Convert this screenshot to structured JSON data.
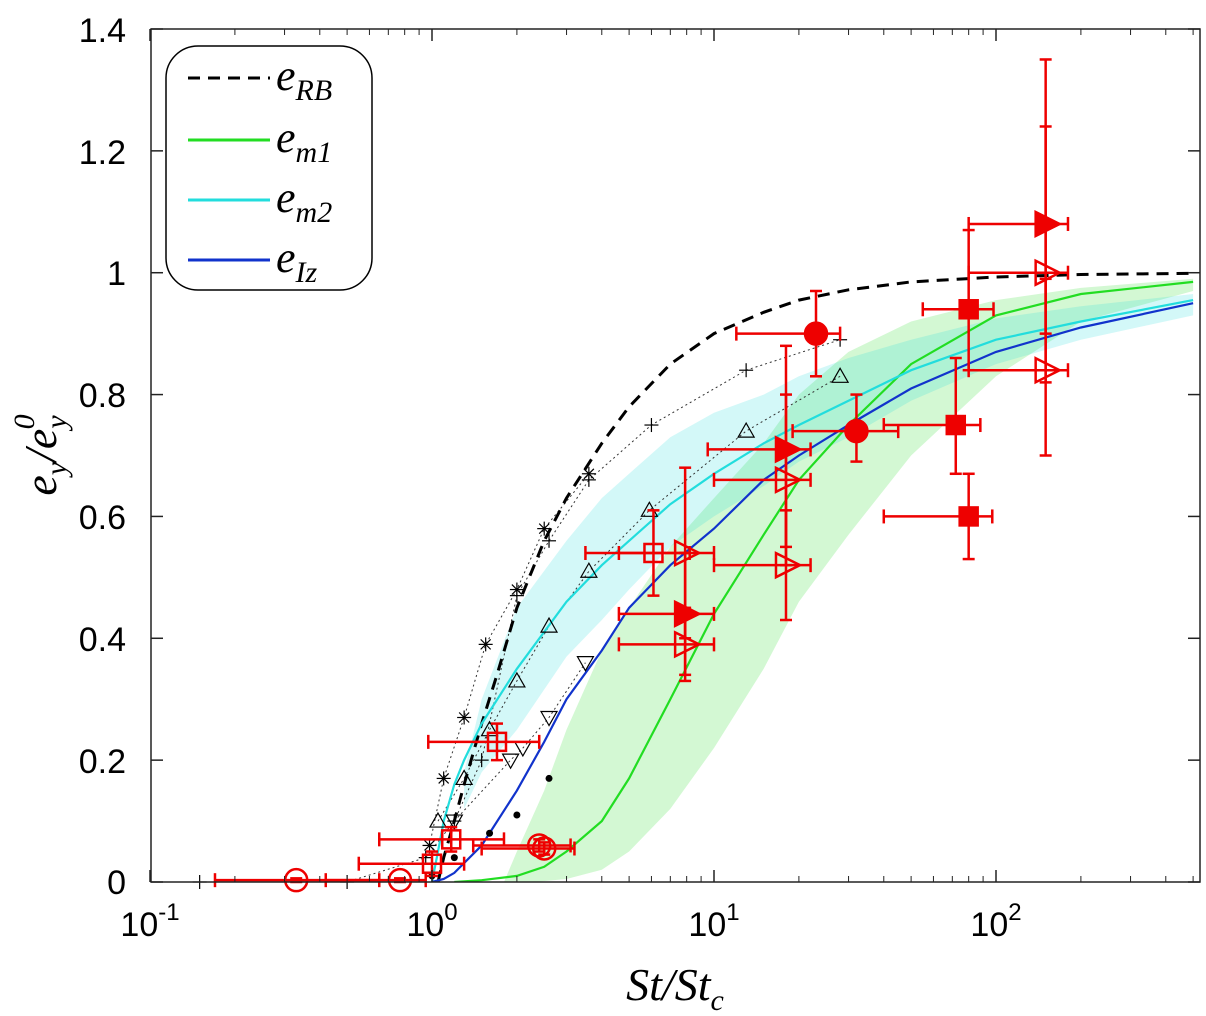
{
  "chart_data": {
    "type": "scatter",
    "xscale": "log",
    "xlim": [
      0.1,
      500
    ],
    "ylim": [
      0,
      1.4
    ],
    "xlabel": {
      "main": "St/St",
      "sub": "c"
    },
    "ylabel": {
      "a": "e",
      "a_sub": "y",
      "slash": "/",
      "b": "e",
      "b_sub": "y",
      "b_sup": "0"
    },
    "x_ticks": [
      {
        "value": 0.1,
        "base": "10",
        "exp": "-1"
      },
      {
        "value": 1,
        "base": "10",
        "exp": "0"
      },
      {
        "value": 10,
        "base": "10",
        "exp": "1"
      },
      {
        "value": 100,
        "base": "10",
        "exp": "2"
      }
    ],
    "y_ticks": [
      {
        "value": 0,
        "label": "0"
      },
      {
        "value": 0.2,
        "label": "0.2"
      },
      {
        "value": 0.4,
        "label": "0.4"
      },
      {
        "value": 0.6,
        "label": "0.6"
      },
      {
        "value": 0.8,
        "label": "0.8"
      },
      {
        "value": 1.0,
        "label": "1"
      },
      {
        "value": 1.2,
        "label": "1.2"
      },
      {
        "value": 1.4,
        "label": "1.4"
      }
    ],
    "legend": {
      "position": "top-left",
      "entries": [
        {
          "id": "eRB",
          "base": "e",
          "sub": "RB",
          "color": "#000000",
          "style": "dashed"
        },
        {
          "id": "em1",
          "base": "e",
          "sub": "m1",
          "color": "#22dd22",
          "style": "solid"
        },
        {
          "id": "em2",
          "base": "e",
          "sub": "m2",
          "color": "#22dddd",
          "style": "solid"
        },
        {
          "id": "eIz",
          "base": "e",
          "sub": "Iz",
          "color": "#1133cc",
          "style": "solid"
        }
      ]
    },
    "model_curves": [
      {
        "id": "eRB",
        "color": "#000000",
        "dash": true,
        "points": [
          [
            1.05,
            0.0
          ],
          [
            1.1,
            0.04
          ],
          [
            1.2,
            0.1
          ],
          [
            1.3,
            0.16
          ],
          [
            1.5,
            0.26
          ],
          [
            1.7,
            0.34
          ],
          [
            2,
            0.45
          ],
          [
            2.5,
            0.56
          ],
          [
            3,
            0.63
          ],
          [
            4,
            0.72
          ],
          [
            5,
            0.78
          ],
          [
            7,
            0.85
          ],
          [
            10,
            0.9
          ],
          [
            15,
            0.935
          ],
          [
            20,
            0.955
          ],
          [
            30,
            0.972
          ],
          [
            50,
            0.985
          ],
          [
            100,
            0.993
          ],
          [
            200,
            0.997
          ],
          [
            500,
            0.999
          ]
        ]
      },
      {
        "id": "em1",
        "color": "#22dd22",
        "dash": false,
        "points": [
          [
            1.2,
            0.0
          ],
          [
            1.5,
            0.003
          ],
          [
            2,
            0.01
          ],
          [
            2.5,
            0.025
          ],
          [
            3,
            0.05
          ],
          [
            4,
            0.1
          ],
          [
            5,
            0.17
          ],
          [
            7,
            0.3
          ],
          [
            10,
            0.44
          ],
          [
            15,
            0.57
          ],
          [
            20,
            0.66
          ],
          [
            30,
            0.75
          ],
          [
            50,
            0.85
          ],
          [
            100,
            0.93
          ],
          [
            200,
            0.965
          ],
          [
            500,
            0.985
          ]
        ]
      },
      {
        "id": "em2",
        "color": "#22dddd",
        "dash": false,
        "points": [
          [
            1.0,
            0.0
          ],
          [
            1.05,
            0.05
          ],
          [
            1.1,
            0.1
          ],
          [
            1.2,
            0.16
          ],
          [
            1.3,
            0.2
          ],
          [
            1.5,
            0.26
          ],
          [
            2,
            0.35
          ],
          [
            3,
            0.46
          ],
          [
            4,
            0.52
          ],
          [
            5,
            0.56
          ],
          [
            7,
            0.62
          ],
          [
            10,
            0.67
          ],
          [
            15,
            0.72
          ],
          [
            20,
            0.75
          ],
          [
            30,
            0.79
          ],
          [
            50,
            0.84
          ],
          [
            100,
            0.89
          ],
          [
            200,
            0.92
          ],
          [
            500,
            0.955
          ]
        ]
      },
      {
        "id": "eIz",
        "color": "#1133cc",
        "dash": false,
        "points": [
          [
            1.0,
            0.0
          ],
          [
            1.1,
            0.005
          ],
          [
            1.2,
            0.015
          ],
          [
            1.5,
            0.06
          ],
          [
            2,
            0.15
          ],
          [
            2.5,
            0.23
          ],
          [
            3,
            0.3
          ],
          [
            4,
            0.38
          ],
          [
            5,
            0.45
          ],
          [
            7,
            0.52
          ],
          [
            10,
            0.58
          ],
          [
            15,
            0.66
          ],
          [
            20,
            0.7
          ],
          [
            30,
            0.75
          ],
          [
            50,
            0.81
          ],
          [
            100,
            0.87
          ],
          [
            200,
            0.91
          ],
          [
            500,
            0.95
          ]
        ]
      }
    ],
    "bands": [
      {
        "id": "em1-band",
        "color": "#22dd22",
        "opacity": 0.2,
        "upper": [
          [
            1.8,
            0.0
          ],
          [
            2,
            0.05
          ],
          [
            2.5,
            0.15
          ],
          [
            3,
            0.25
          ],
          [
            4,
            0.38
          ],
          [
            5,
            0.45
          ],
          [
            7,
            0.55
          ],
          [
            10,
            0.63
          ],
          [
            15,
            0.72
          ],
          [
            20,
            0.8
          ],
          [
            30,
            0.87
          ],
          [
            50,
            0.92
          ],
          [
            100,
            0.955
          ],
          [
            200,
            0.975
          ],
          [
            500,
            0.99
          ]
        ],
        "lower": [
          [
            2.3,
            0.0
          ],
          [
            3,
            0.005
          ],
          [
            4,
            0.02
          ],
          [
            5,
            0.05
          ],
          [
            7,
            0.12
          ],
          [
            10,
            0.22
          ],
          [
            15,
            0.35
          ],
          [
            20,
            0.46
          ],
          [
            30,
            0.57
          ],
          [
            50,
            0.7
          ],
          [
            100,
            0.83
          ],
          [
            200,
            0.92
          ],
          [
            500,
            0.97
          ]
        ]
      },
      {
        "id": "em2-band",
        "color": "#22dddd",
        "opacity": 0.2,
        "upper": [
          [
            1.3,
            0.18
          ],
          [
            1.5,
            0.3
          ],
          [
            2,
            0.45
          ],
          [
            3,
            0.56
          ],
          [
            4,
            0.63
          ],
          [
            5,
            0.67
          ],
          [
            7,
            0.73
          ],
          [
            10,
            0.77
          ],
          [
            15,
            0.8
          ],
          [
            20,
            0.83
          ],
          [
            30,
            0.86
          ],
          [
            50,
            0.89
          ],
          [
            100,
            0.925
          ],
          [
            200,
            0.945
          ],
          [
            500,
            0.965
          ]
        ],
        "lower": [
          [
            1.3,
            0.12
          ],
          [
            1.5,
            0.18
          ],
          [
            2,
            0.25
          ],
          [
            3,
            0.37
          ],
          [
            4,
            0.43
          ],
          [
            5,
            0.48
          ],
          [
            7,
            0.55
          ],
          [
            10,
            0.6
          ],
          [
            15,
            0.65
          ],
          [
            20,
            0.69
          ],
          [
            30,
            0.73
          ],
          [
            50,
            0.79
          ],
          [
            100,
            0.85
          ],
          [
            200,
            0.89
          ],
          [
            500,
            0.93
          ]
        ]
      }
    ],
    "reference_series": [
      {
        "id": "ref-star",
        "marker": "star",
        "points": [
          [
            0.98,
            0.06
          ],
          [
            1.1,
            0.17
          ],
          [
            1.3,
            0.27
          ],
          [
            1.55,
            0.39
          ],
          [
            2,
            0.48
          ],
          [
            2.5,
            0.58
          ],
          [
            3.6,
            0.67
          ]
        ]
      },
      {
        "id": "ref-plus",
        "marker": "plus",
        "points": [
          [
            0.15,
            0.0
          ],
          [
            0.5,
            0.0
          ],
          [
            0.95,
            0.04
          ],
          [
            1.2,
            0.1
          ],
          [
            1.5,
            0.2
          ],
          [
            2,
            0.47
          ],
          [
            2.6,
            0.56
          ],
          [
            3.6,
            0.66
          ],
          [
            6,
            0.75
          ],
          [
            13,
            0.84
          ],
          [
            28,
            0.89
          ]
        ]
      },
      {
        "id": "ref-up",
        "marker": "triangle-up",
        "points": [
          [
            1.05,
            0.1
          ],
          [
            1.3,
            0.17
          ],
          [
            1.6,
            0.25
          ],
          [
            2,
            0.33
          ],
          [
            2.6,
            0.42
          ],
          [
            3.6,
            0.51
          ],
          [
            5.9,
            0.61
          ],
          [
            13,
            0.74
          ],
          [
            28,
            0.83
          ]
        ]
      },
      {
        "id": "ref-down",
        "marker": "triangle-down",
        "points": [
          [
            1.2,
            0.1
          ],
          [
            1.9,
            0.2
          ],
          [
            2.1,
            0.22
          ],
          [
            2.6,
            0.27
          ],
          [
            3.5,
            0.36
          ]
        ]
      },
      {
        "id": "ref-dot",
        "marker": "dot",
        "points": [
          [
            1.0,
            0.01
          ],
          [
            1.2,
            0.04
          ],
          [
            1.6,
            0.08
          ],
          [
            2,
            0.11
          ],
          [
            2.6,
            0.17
          ]
        ]
      }
    ],
    "experimental_series": [
      {
        "id": "exp-open-circle",
        "marker": "circle",
        "filled": false,
        "points": [
          {
            "x": 0.33,
            "y": 0.003,
            "xlo": 0.17,
            "xhi": 0.65,
            "ylo": 0.0,
            "yhi": 0.006
          },
          {
            "x": 0.77,
            "y": 0.003,
            "xlo": 0.42,
            "xhi": 0.95,
            "ylo": 0.0,
            "yhi": 0.006
          },
          {
            "x": 2.4,
            "y": 0.06,
            "xlo": 1.4,
            "xhi": 3.1,
            "ylo": 0.05,
            "yhi": 0.07
          },
          {
            "x": 2.5,
            "y": 0.055,
            "xlo": 1.5,
            "xhi": 3.2,
            "ylo": 0.045,
            "yhi": 0.065
          }
        ]
      },
      {
        "id": "exp-open-square",
        "marker": "square",
        "filled": false,
        "points": [
          {
            "x": 1.0,
            "y": 0.03,
            "xlo": 0.55,
            "xhi": 1.3,
            "ylo": 0.01,
            "yhi": 0.05
          },
          {
            "x": 1.17,
            "y": 0.07,
            "xlo": 0.65,
            "xhi": 1.8,
            "ylo": 0.05,
            "yhi": 0.09
          },
          {
            "x": 1.7,
            "y": 0.23,
            "xlo": 0.97,
            "xhi": 2.4,
            "ylo": 0.2,
            "yhi": 0.26
          },
          {
            "x": 6.1,
            "y": 0.54,
            "xlo": 3.5,
            "xhi": 8.2,
            "ylo": 0.47,
            "yhi": 0.61
          }
        ]
      },
      {
        "id": "exp-filled-tri",
        "marker": "triangle-right",
        "filled": true,
        "points": [
          {
            "x": 7.9,
            "y": 0.44,
            "xlo": 4.6,
            "xhi": 10,
            "ylo": 0.34,
            "yhi": 0.54
          },
          {
            "x": 18,
            "y": 0.71,
            "xlo": 9.5,
            "xhi": 22,
            "ylo": 0.55,
            "yhi": 0.88
          },
          {
            "x": 150,
            "y": 1.08,
            "xlo": 80,
            "xhi": 180,
            "ylo": 0.9,
            "yhi": 1.35
          }
        ]
      },
      {
        "id": "exp-open-tri",
        "marker": "triangle-right",
        "filled": false,
        "points": [
          {
            "x": 7.9,
            "y": 0.39,
            "xlo": 4.6,
            "xhi": 10,
            "ylo": 0.33,
            "yhi": 0.45
          },
          {
            "x": 7.9,
            "y": 0.54,
            "xlo": 4.6,
            "xhi": 10,
            "ylo": 0.4,
            "yhi": 0.68
          },
          {
            "x": 18,
            "y": 0.52,
            "xlo": 10,
            "xhi": 22,
            "ylo": 0.43,
            "yhi": 0.61
          },
          {
            "x": 18,
            "y": 0.66,
            "xlo": 10,
            "xhi": 22,
            "ylo": 0.52,
            "yhi": 0.8
          },
          {
            "x": 150,
            "y": 0.84,
            "xlo": 80,
            "xhi": 180,
            "ylo": 0.7,
            "yhi": 0.99
          },
          {
            "x": 150,
            "y": 1.0,
            "xlo": 80,
            "xhi": 180,
            "ylo": 0.82,
            "yhi": 1.24
          }
        ]
      },
      {
        "id": "exp-filled-circle",
        "marker": "circle",
        "filled": true,
        "points": [
          {
            "x": 23,
            "y": 0.9,
            "xlo": 12,
            "xhi": 28,
            "ylo": 0.83,
            "yhi": 0.97
          },
          {
            "x": 32,
            "y": 0.74,
            "xlo": 19,
            "xhi": 45,
            "ylo": 0.69,
            "yhi": 0.8
          }
        ]
      },
      {
        "id": "exp-filled-square",
        "marker": "square",
        "filled": true,
        "points": [
          {
            "x": 80,
            "y": 0.94,
            "xlo": 55,
            "xhi": 98,
            "ylo": 0.84,
            "yhi": 1.07
          },
          {
            "x": 72,
            "y": 0.75,
            "xlo": 40,
            "xhi": 88,
            "ylo": 0.67,
            "yhi": 0.86
          },
          {
            "x": 80,
            "y": 0.6,
            "xlo": 40,
            "xhi": 97,
            "ylo": 0.53,
            "yhi": 0.67
          }
        ]
      }
    ],
    "colors": {
      "experimental": "#ee0000",
      "reference": "#000000"
    }
  }
}
